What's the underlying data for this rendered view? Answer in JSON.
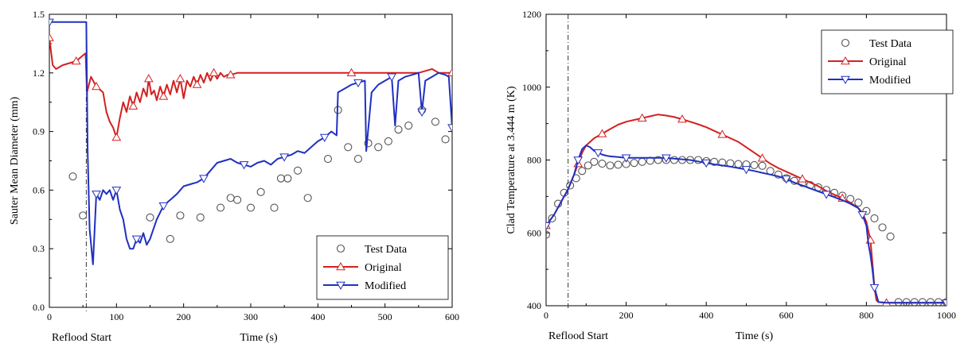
{
  "chart_data": [
    {
      "type": "line",
      "title": "",
      "xlabel": "Time (s)",
      "ylabel": "Sauter Mean Diameter (mm)",
      "xlim": [
        0,
        600
      ],
      "ylim": [
        0.0,
        1.5
      ],
      "xticks": [
        0,
        100,
        200,
        300,
        400,
        500,
        600
      ],
      "yticks": [
        0.0,
        0.3,
        0.6,
        0.9,
        1.2,
        1.5
      ],
      "xtick_labels": [
        "0",
        "100",
        "200",
        "300",
        "400",
        "500",
        "600"
      ],
      "ytick_labels": [
        "0.0",
        "0.3",
        "0.6",
        "0.9",
        "1.2",
        "1.5"
      ],
      "grid": false,
      "legend_position": "bottom-right",
      "reflood_start": 55,
      "annotation": "Reflood Start",
      "series": [
        {
          "name": "Test Data",
          "style": "markers",
          "marker": "circle",
          "color": "#555555",
          "x": [
            35,
            50,
            150,
            180,
            195,
            225,
            255,
            270,
            280,
            300,
            315,
            335,
            345,
            355,
            370,
            385,
            415,
            430,
            445,
            460,
            475,
            490,
            505,
            520,
            535,
            555,
            575,
            590
          ],
          "y": [
            0.67,
            0.47,
            0.46,
            0.35,
            0.47,
            0.46,
            0.51,
            0.56,
            0.55,
            0.51,
            0.59,
            0.51,
            0.66,
            0.66,
            0.7,
            0.56,
            0.76,
            1.01,
            0.82,
            0.76,
            0.84,
            0.82,
            0.85,
            0.91,
            0.93,
            1.01,
            0.95,
            0.86
          ]
        },
        {
          "name": "Original",
          "style": "line",
          "marker": "triangle-up",
          "color": "#d42020",
          "x": [
            0,
            5,
            10,
            20,
            30,
            40,
            50,
            54,
            56,
            62,
            70,
            80,
            85,
            90,
            95,
            100,
            105,
            110,
            115,
            120,
            125,
            130,
            135,
            140,
            145,
            148,
            152,
            156,
            160,
            165,
            170,
            175,
            180,
            185,
            190,
            195,
            200,
            205,
            210,
            215,
            220,
            225,
            230,
            235,
            240,
            245,
            250,
            255,
            260,
            265,
            270,
            280,
            300,
            350,
            400,
            450,
            500,
            550,
            570,
            580,
            600
          ],
          "y": [
            1.38,
            1.24,
            1.22,
            1.24,
            1.25,
            1.26,
            1.29,
            1.3,
            1.1,
            1.18,
            1.13,
            1.1,
            1.0,
            0.95,
            0.92,
            0.87,
            0.97,
            1.05,
            1.0,
            1.08,
            1.03,
            1.1,
            1.05,
            1.12,
            1.08,
            1.17,
            1.09,
            1.11,
            1.06,
            1.13,
            1.08,
            1.14,
            1.09,
            1.16,
            1.1,
            1.17,
            1.07,
            1.16,
            1.13,
            1.18,
            1.14,
            1.19,
            1.15,
            1.2,
            1.16,
            1.2,
            1.17,
            1.2,
            1.18,
            1.19,
            1.19,
            1.2,
            1.2,
            1.2,
            1.2,
            1.2,
            1.2,
            1.2,
            1.22,
            1.2,
            1.2
          ]
        },
        {
          "name": "Modified",
          "style": "line",
          "marker": "triangle-down",
          "color": "#2030c0",
          "x": [
            0,
            40,
            55,
            57,
            60,
            65,
            70,
            75,
            80,
            85,
            90,
            95,
            100,
            105,
            110,
            115,
            120,
            125,
            130,
            135,
            140,
            145,
            150,
            160,
            170,
            180,
            190,
            200,
            210,
            220,
            230,
            240,
            250,
            260,
            270,
            280,
            290,
            300,
            310,
            320,
            330,
            340,
            350,
            360,
            370,
            380,
            390,
            400,
            410,
            420,
            428,
            430,
            440,
            450,
            460,
            470,
            472,
            480,
            490,
            500,
            510,
            515,
            520,
            530,
            540,
            550,
            555,
            560,
            570,
            580,
            590,
            595,
            600
          ],
          "y": [
            1.46,
            1.46,
            1.46,
            0.8,
            0.4,
            0.22,
            0.58,
            0.55,
            0.6,
            0.58,
            0.6,
            0.55,
            0.6,
            0.5,
            0.45,
            0.35,
            0.3,
            0.3,
            0.35,
            0.33,
            0.38,
            0.32,
            0.35,
            0.45,
            0.52,
            0.55,
            0.58,
            0.62,
            0.63,
            0.64,
            0.66,
            0.7,
            0.74,
            0.75,
            0.76,
            0.74,
            0.73,
            0.72,
            0.74,
            0.75,
            0.73,
            0.76,
            0.77,
            0.78,
            0.8,
            0.79,
            0.82,
            0.85,
            0.87,
            0.9,
            0.88,
            1.1,
            1.12,
            1.14,
            1.15,
            1.16,
            0.8,
            1.1,
            1.14,
            1.16,
            1.18,
            0.93,
            1.16,
            1.18,
            1.19,
            1.2,
            1.0,
            1.16,
            1.18,
            1.2,
            1.19,
            1.18,
            0.92
          ]
        }
      ]
    },
    {
      "type": "line",
      "title": "",
      "xlabel": "Time (s)",
      "ylabel": "Clad Temperature at 3.444 m (K)",
      "xlim": [
        0,
        1000
      ],
      "ylim": [
        400,
        1200
      ],
      "xticks": [
        0,
        200,
        400,
        600,
        800,
        1000
      ],
      "yticks": [
        400,
        600,
        800,
        1000,
        1200
      ],
      "xtick_labels": [
        "0",
        "200",
        "400",
        "600",
        "800",
        "1000"
      ],
      "ytick_labels": [
        "400",
        "600",
        "800",
        "1000",
        "1200"
      ],
      "grid": false,
      "legend_position": "top-right",
      "reflood_start": 55,
      "annotation": "Reflood Start",
      "series": [
        {
          "name": "Test Data",
          "style": "markers",
          "marker": "circle",
          "color": "#555555",
          "x": [
            0,
            15,
            30,
            45,
            60,
            75,
            90,
            105,
            120,
            140,
            160,
            180,
            200,
            220,
            240,
            260,
            280,
            300,
            320,
            340,
            360,
            380,
            400,
            420,
            440,
            460,
            480,
            500,
            520,
            540,
            560,
            580,
            600,
            620,
            640,
            660,
            680,
            700,
            720,
            740,
            760,
            780,
            800,
            820,
            840,
            860,
            880,
            900,
            920,
            940,
            960,
            980,
            1000
          ],
          "y": [
            595,
            640,
            680,
            710,
            730,
            750,
            770,
            785,
            795,
            790,
            785,
            787,
            789,
            792,
            795,
            798,
            800,
            800,
            800,
            800,
            800,
            800,
            797,
            795,
            793,
            791,
            789,
            788,
            786,
            784,
            770,
            760,
            750,
            743,
            737,
            731,
            725,
            718,
            710,
            702,
            693,
            683,
            660,
            640,
            615,
            590,
            410,
            410,
            410,
            410,
            410,
            410,
            410
          ]
        },
        {
          "name": "Original",
          "style": "line",
          "marker": "triangle-up",
          "color": "#d42020",
          "x": [
            0,
            20,
            40,
            55,
            70,
            80,
            90,
            100,
            110,
            120,
            140,
            160,
            180,
            200,
            220,
            240,
            260,
            280,
            300,
            320,
            340,
            360,
            380,
            400,
            420,
            440,
            460,
            480,
            500,
            520,
            540,
            560,
            580,
            600,
            620,
            640,
            660,
            680,
            700,
            720,
            740,
            760,
            780,
            790,
            800,
            810,
            815,
            820,
            825,
            830,
            850,
            900,
            950,
            1000
          ],
          "y": [
            620,
            650,
            690,
            720,
            760,
            790,
            820,
            840,
            850,
            860,
            872,
            885,
            897,
            905,
            910,
            915,
            920,
            925,
            922,
            918,
            912,
            905,
            898,
            890,
            880,
            870,
            860,
            850,
            835,
            820,
            805,
            790,
            778,
            768,
            758,
            748,
            738,
            728,
            715,
            705,
            695,
            683,
            668,
            655,
            630,
            580,
            520,
            450,
            415,
            410,
            408,
            408,
            408,
            408
          ]
        },
        {
          "name": "Modified",
          "style": "line",
          "marker": "triangle-down",
          "color": "#2030c0",
          "x": [
            0,
            20,
            40,
            55,
            70,
            80,
            90,
            100,
            110,
            120,
            130,
            140,
            150,
            160,
            180,
            200,
            220,
            240,
            260,
            280,
            300,
            320,
            340,
            360,
            380,
            400,
            420,
            440,
            460,
            480,
            500,
            520,
            540,
            560,
            580,
            600,
            620,
            640,
            660,
            680,
            700,
            720,
            740,
            760,
            780,
            790,
            800,
            805,
            810,
            815,
            820,
            830,
            850,
            900,
            950,
            1000
          ],
          "y": [
            620,
            650,
            690,
            720,
            760,
            800,
            830,
            840,
            835,
            825,
            820,
            815,
            812,
            810,
            808,
            806,
            806,
            806,
            806,
            806,
            806,
            804,
            802,
            800,
            796,
            792,
            788,
            785,
            782,
            778,
            774,
            770,
            765,
            760,
            755,
            748,
            738,
            730,
            722,
            714,
            706,
            698,
            690,
            680,
            668,
            650,
            620,
            570,
            540,
            500,
            450,
            410,
            408,
            408,
            408,
            408
          ]
        }
      ]
    }
  ]
}
